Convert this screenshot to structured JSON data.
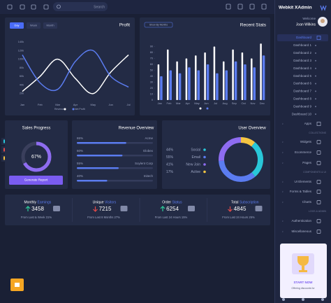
{
  "topbar": {
    "search": "Search"
  },
  "sidebar": {
    "brand": "Webkit XAdmin",
    "welcome": "Welcome",
    "user": "Joan Wilkins",
    "menu": [
      "Dashboard",
      "Dashboard 1",
      "Dashboard 2",
      "Dashboard 3",
      "Dashboard 4",
      "Dashboard 5",
      "Dashboard 6",
      "Dashboard 7",
      "Dashboard 8",
      "Dashboard 9",
      "Dashboard 10",
      "Apps"
    ],
    "sections": [
      {
        "heading": "COLLECTIONS",
        "items": [
          "Widgets",
          "Ecommerce",
          "Pages"
        ]
      },
      {
        "heading": "COMPONENTS & UI",
        "items": [
          "UI Elements",
          "Forms & Tables",
          "Charts"
        ]
      },
      {
        "heading": "LOGS & ADMIN",
        "items": [
          "Authentication",
          "Miscellaneous"
        ]
      }
    ],
    "promo": {
      "title": "START NOW",
      "text": "Offering discounts for"
    }
  },
  "profit": {
    "type": "line",
    "title": "Profit",
    "tabs": [
      "Day",
      "Week",
      "Month"
    ],
    "x": [
      "Jan",
      "Feb",
      "Mar",
      "Apr",
      "May",
      "Jun",
      "Jul"
    ],
    "ylim": [
      0,
      140
    ],
    "yticks": [
      {
        "value": 20,
        "label": "20k"
      },
      {
        "value": 40,
        "label": "40k"
      },
      {
        "value": 60,
        "label": "60k"
      },
      {
        "value": 80,
        "label": "80k"
      },
      {
        "value": 100,
        "label": "100k"
      },
      {
        "value": 120,
        "label": "120k"
      },
      {
        "value": 140,
        "label": "140k"
      }
    ],
    "series": [
      {
        "name": "Revenue",
        "color": "#ffffff",
        "values": [
          25,
          60,
          100,
          55,
          20,
          70,
          110
        ]
      },
      {
        "name": "Net Profit",
        "color": "#5b7cf0",
        "values": [
          110,
          45,
          30,
          95,
          120,
          60,
          35
        ]
      }
    ]
  },
  "recent_stats": {
    "type": "bar",
    "title": "Recent Stats",
    "button": "Show By Months",
    "categories": [
      "Jan",
      "Feb",
      "Mar",
      "Apr",
      "May",
      "Jun",
      "Jul",
      "Aug",
      "Sep",
      "Oct",
      "Nov",
      "Dec"
    ],
    "ylim": [
      0,
      100
    ],
    "yticks": [
      0,
      10,
      20,
      30,
      40,
      50,
      60,
      70,
      80,
      90
    ],
    "series": [
      {
        "color": "#ffffff",
        "values": [
          60,
          85,
          65,
          70,
          75,
          80,
          90,
          65,
          85,
          80,
          70,
          95
        ]
      },
      {
        "color": "#5b7cf0",
        "values": [
          40,
          50,
          45,
          55,
          50,
          60,
          45,
          50,
          65,
          60,
          55,
          75
        ]
      }
    ]
  },
  "sales_progress": {
    "title": "Sales Progress",
    "value": 67,
    "value_label": "67%",
    "button": "Generate Report"
  },
  "revenue_overview": {
    "title": "Revenue Overview",
    "categories": [
      "Acme",
      "Globex",
      "Soylent Corp",
      "Initech"
    ],
    "values": [
      65,
      60,
      55,
      40
    ],
    "value_labels": [
      "65%",
      "60%",
      "55%",
      "40%"
    ]
  },
  "user_overview": {
    "title": "User Overview",
    "categories": [
      "Social",
      "Email",
      "New Join",
      "Active"
    ],
    "values": [
      44,
      55,
      41,
      17
    ],
    "value_labels": [
      "44%",
      "55%",
      "41%",
      "17%"
    ],
    "colors": [
      "#29c7d9",
      "#5b7cf0",
      "#8e6cf0",
      "#f5c542"
    ]
  },
  "stats_cards": [
    {
      "title": "Monthly",
      "title_accent": "Earnings",
      "value": 3458,
      "trend": "up",
      "note": "From Last & Week 31%"
    },
    {
      "title": "Unique",
      "title_accent": "Visitors",
      "value": 7215,
      "trend": "down",
      "note": "From Last 8 Months 27%"
    },
    {
      "title": "Order",
      "title_accent": "Status",
      "value": 6254,
      "trend": "up",
      "note": "From Last 24 Hours 15%"
    },
    {
      "title": "Total",
      "title_accent": "Subscription",
      "value": 4845,
      "trend": "down",
      "note": "From Last 24 Hours 25%"
    }
  ]
}
